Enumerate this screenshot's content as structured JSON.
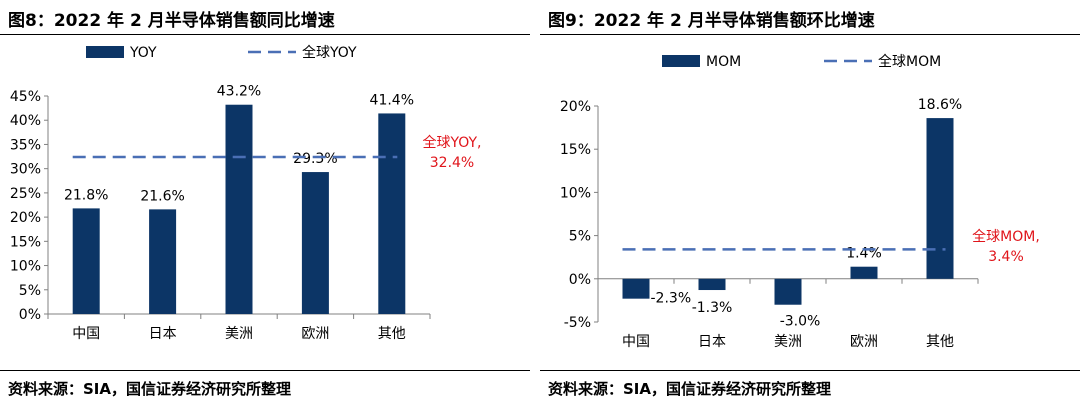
{
  "colors": {
    "bar": "#0c3566",
    "global_line": "#4a6fb5",
    "annotation": "#e0151b",
    "axis": "#808080"
  },
  "chart_data": [
    {
      "type": "bar",
      "title": "图8：2022 年 2 月半导体销售额同比增速",
      "source": "资料来源：SIA，国信证券经济研究所整理",
      "categories": [
        "中国",
        "日本",
        "美洲",
        "欧洲",
        "其他"
      ],
      "series": [
        {
          "name": "YOY",
          "values": [
            21.8,
            21.6,
            43.2,
            29.3,
            41.4
          ]
        }
      ],
      "value_labels": [
        "21.8%",
        "21.6%",
        "43.2%",
        "29.3%",
        "41.4%"
      ],
      "reference_line": {
        "name": "全球YOY",
        "value": 32.4,
        "label_line1": "全球YOY,",
        "label_line2": "32.4%"
      },
      "legend": {
        "bar": "YOY",
        "line": "全球YOY",
        "position": "top"
      },
      "ylim": [
        0,
        45
      ],
      "yticks": [
        0,
        5,
        10,
        15,
        20,
        25,
        30,
        35,
        40,
        45
      ],
      "ytick_labels": [
        "0%",
        "5%",
        "10%",
        "15%",
        "20%",
        "25%",
        "30%",
        "35%",
        "40%",
        "45%"
      ],
      "xlabel": "",
      "ylabel": "",
      "grid": false
    },
    {
      "type": "bar",
      "title": "图9：2022 年 2 月半导体销售额环比增速",
      "source": "资料来源：SIA，国信证券经济研究所整理",
      "categories": [
        "中国",
        "日本",
        "美洲",
        "欧洲",
        "其他"
      ],
      "series": [
        {
          "name": "MOM",
          "values": [
            -2.3,
            -1.3,
            -3.0,
            1.4,
            18.6
          ]
        }
      ],
      "value_labels": [
        "-2.3%",
        "-1.3%",
        "-3.0%",
        "1.4%",
        "18.6%"
      ],
      "reference_line": {
        "name": "全球MOM",
        "value": 3.4,
        "label_line1": "全球MOM,",
        "label_line2": "3.4%"
      },
      "legend": {
        "bar": "MOM",
        "line": "全球MOM",
        "position": "top"
      },
      "ylim": [
        -5,
        20
      ],
      "yticks": [
        -5,
        0,
        5,
        10,
        15,
        20
      ],
      "ytick_labels": [
        "-5%",
        "0%",
        "5%",
        "10%",
        "15%",
        "20%"
      ],
      "xlabel": "",
      "ylabel": "",
      "grid": false
    }
  ]
}
